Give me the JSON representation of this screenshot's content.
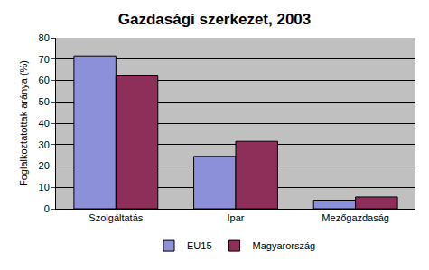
{
  "chart_data": {
    "type": "bar",
    "title": "Gazdasági szerkezet, 2003",
    "y_label": "Foglalkoztatottak aránya (%)",
    "categories": [
      "Szolgáltatás",
      "Ipar",
      "Mezőgazdaság"
    ],
    "series": [
      {
        "name": "EU15",
        "color": "#8c90d9",
        "values": [
          71.5,
          24.5,
          4
        ]
      },
      {
        "name": "Magyarország",
        "color": "#8e2f5a",
        "values": [
          62.5,
          31.5,
          5.5
        ]
      }
    ],
    "ylim": [
      0,
      80
    ],
    "yticks": [
      0,
      10,
      20,
      30,
      40,
      50,
      60,
      70,
      80
    ],
    "grid": true,
    "legend": "bottom"
  }
}
